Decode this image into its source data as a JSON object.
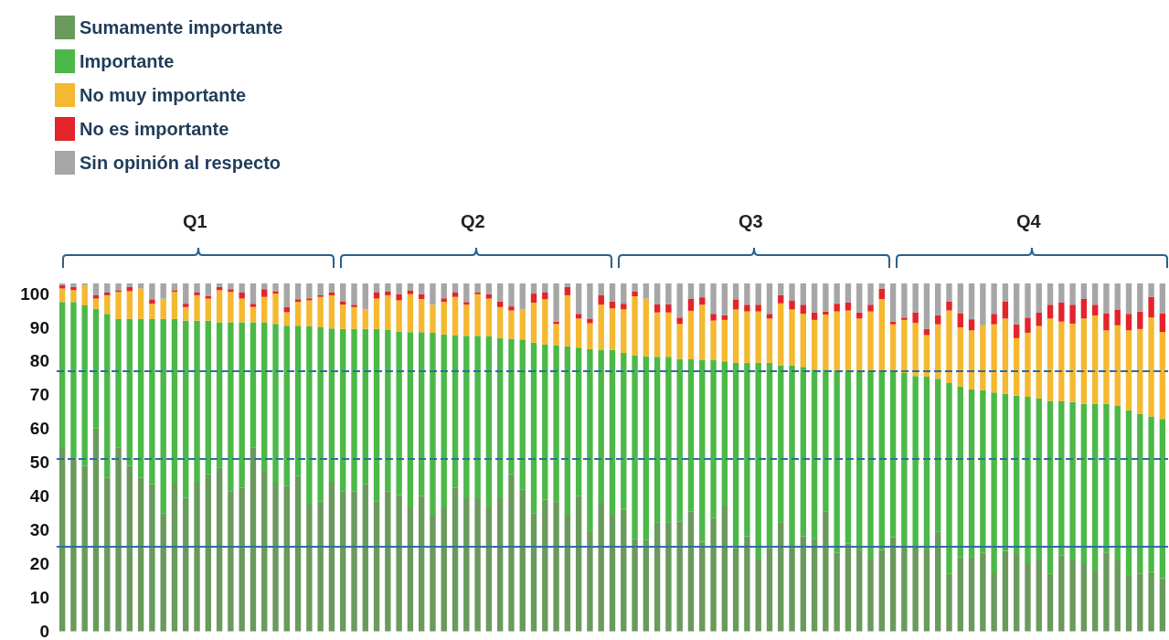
{
  "chart_data": {
    "type": "bar",
    "stacked": true,
    "legend": "top left",
    "grid": false,
    "categories": [
      null,
      null,
      null,
      null,
      null,
      null,
      null,
      null,
      null,
      null,
      null,
      null,
      null,
      null,
      null,
      null,
      null,
      null,
      null,
      null,
      null,
      null,
      null,
      null,
      null,
      null,
      null,
      null,
      null,
      null,
      null,
      null,
      null,
      null,
      null,
      null,
      null,
      null,
      null,
      null,
      null,
      null,
      null,
      null,
      null,
      null,
      null,
      null,
      null,
      null,
      null,
      null,
      null,
      null,
      null,
      null,
      null,
      null,
      null,
      null,
      null,
      null,
      null,
      null,
      null,
      null,
      null,
      null,
      null,
      null,
      null,
      null,
      null,
      null,
      null,
      null,
      null,
      null,
      null,
      null,
      null,
      null,
      null,
      null,
      null,
      null,
      null,
      null,
      null,
      null,
      null,
      null,
      null,
      null,
      null,
      null,
      null,
      null,
      null
    ],
    "ylim": [
      0,
      103
    ],
    "yticks": [
      0,
      10,
      20,
      30,
      40,
      50,
      60,
      70,
      80,
      90,
      100
    ],
    "annotations": [
      "Q1",
      "Q2",
      "Q3",
      "Q4"
    ],
    "ref_lines": [
      {
        "axis": "y",
        "value": 77,
        "color": "#2e6da4",
        "line_style": "dashed"
      },
      {
        "axis": "y",
        "value": 51,
        "color": "#2e6da4",
        "line_style": "dashed"
      },
      {
        "axis": "y",
        "value": 25,
        "color": "#2e6da4",
        "line_style": "solid"
      }
    ],
    "series": [
      {
        "name": "Sumamente importante",
        "color": "#6a9a5c",
        "values": [
          54,
          51,
          49,
          60,
          45.5,
          54.5,
          49,
          45.5,
          43.5,
          35,
          44,
          39.5,
          44,
          46.5,
          48.5,
          41.5,
          42.5,
          54.5,
          47.5,
          44,
          43,
          46,
          37.5,
          38.5,
          44,
          41.5,
          41.5,
          43.5,
          38.5,
          41.5,
          40.3,
          36.7,
          40,
          34.5,
          36.7,
          42.5,
          39.4,
          39.4,
          36.7,
          39.4,
          46.5,
          42,
          35,
          39,
          38.5,
          34.5,
          40,
          29.6,
          38,
          34.5,
          36.3,
          27.3,
          27,
          32.3,
          32.3,
          32.5,
          35.4,
          26.5,
          33.6,
          37.2,
          24.7,
          28.2,
          21.5,
          24.7,
          32.3,
          25.6,
          28.2,
          27.3,
          35.4,
          23.3,
          26,
          24.2,
          21.5,
          24,
          27.8,
          25,
          25,
          24.2,
          29.6,
          17,
          22,
          22,
          23.3,
          17.2,
          23.8,
          22.9,
          20.2,
          21.5,
          17,
          22.4,
          21,
          20.2,
          18,
          23.3,
          21,
          16.6,
          17,
          17.5,
          15.7
        ]
      },
      {
        "name": "Importante",
        "color": "#4cb848",
        "values": [
          43.5,
          46.5,
          47.5,
          35.5,
          48.5,
          38,
          43.5,
          47,
          49,
          57.5,
          48.5,
          52.5,
          48,
          45.5,
          43,
          50,
          49,
          37,
          44,
          47,
          47.5,
          44.5,
          52.9,
          51.5,
          45.7,
          48,
          48,
          46,
          51,
          47.8,
          48.5,
          51.9,
          48.6,
          53.9,
          51.2,
          45.2,
          48.1,
          48.1,
          50.6,
          47.4,
          40.1,
          44.4,
          50.5,
          45.9,
          46.1,
          49.8,
          44,
          53.9,
          45.4,
          48.9,
          46.1,
          54.3,
          54.5,
          49,
          49,
          48.2,
          45.1,
          53.9,
          46.8,
          42.7,
          54.8,
          51.3,
          58,
          54.8,
          46.5,
          53.2,
          50.1,
          50.2,
          42.1,
          53.9,
          51.2,
          53,
          55.5,
          53,
          49.2,
          51.5,
          50.6,
          51.2,
          45.2,
          56.6,
          50.5,
          49.6,
          48.1,
          53.5,
          46.5,
          46.9,
          49.2,
          47.5,
          51.2,
          45.7,
          46.9,
          47.1,
          49.3,
          44,
          45.7,
          48.8,
          47.3,
          46.1,
          47.2
        ]
      },
      {
        "name": "No muy importante",
        "color": "#f4b930",
        "values": [
          4,
          3.5,
          6,
          3,
          5.5,
          8,
          8.2,
          9,
          4.5,
          6,
          8,
          4,
          7.5,
          6.5,
          9.5,
          9,
          7,
          4.5,
          7.5,
          9,
          4,
          7,
          7.6,
          9,
          9.8,
          7.2,
          6.5,
          5.8,
          9,
          10.2,
          9.2,
          11.2,
          9.8,
          8.3,
          9.6,
          11.3,
          9.2,
          12.3,
          11.2,
          9.2,
          8.4,
          8.9,
          11.8,
          13.4,
          6.4,
          15.2,
          8.6,
          7.7,
          13.3,
          12.2,
          12.9,
          17.6,
          17,
          13.1,
          13.1,
          10.3,
          14.4,
          16.3,
          11.6,
          12.3,
          15.8,
          15.2,
          15.2,
          13.1,
          18.3,
          16.5,
          15.7,
          14.7,
          16.3,
          17.5,
          17.8,
          15.4,
          17.7,
          21.4,
          13.9,
          15.7,
          15.7,
          12.3,
          16.1,
          21.4,
          17.5,
          17.5,
          19.2,
          20.2,
          22.3,
          17,
          19,
          21.4,
          24.4,
          23.6,
          23.2,
          25.3,
          26.2,
          21.8,
          23.9,
          23.7,
          25.2,
          29.3,
          25.7
        ]
      },
      {
        "name": "No es importante",
        "color": "#e3242b",
        "values": [
          1,
          1,
          0,
          1,
          0.8,
          0.5,
          1.3,
          0,
          1.3,
          0,
          0.5,
          1,
          0.8,
          0.8,
          1,
          0.8,
          1.8,
          1,
          2.3,
          0.7,
          1.5,
          0.8,
          0.6,
          0.5,
          0.8,
          0.9,
          0.7,
          0,
          1.8,
          1.2,
          1.8,
          1.2,
          1.4,
          0,
          1.1,
          1.3,
          0.8,
          0.5,
          1.3,
          1.6,
          1.2,
          0,
          2.7,
          2,
          0.7,
          2.5,
          1.4,
          1.4,
          2.8,
          2,
          1.7,
          1.5,
          0,
          2.4,
          2.4,
          1.9,
          3.5,
          2.2,
          2,
          1.4,
          3,
          2,
          2,
          1.4,
          2.4,
          2.7,
          2.7,
          2.2,
          0.9,
          2.3,
          2.4,
          1.8,
          2,
          3.1,
          0.8,
          0.7,
          3.1,
          1.8,
          2.7,
          2.6,
          4.2,
          3.3,
          0,
          3.1,
          5,
          4.1,
          4.5,
          4,
          4.1,
          5.7,
          5.6,
          5.8,
          3.2,
          5.1,
          4.7,
          4.9,
          5.2,
          6.1,
          5.6
        ]
      },
      {
        "name": "Sin opinión al respecto",
        "color": "#a6a6a6",
        "values": [
          0.5,
          1,
          0.5,
          3.5,
          2.7,
          2,
          1,
          1.5,
          4.7,
          4.5,
          2,
          6,
          2.7,
          3.7,
          1,
          1.7,
          2.7,
          6,
          1.7,
          2.3,
          7,
          4.7,
          4.4,
          3.5,
          2.7,
          5.4,
          6.3,
          7.7,
          2.7,
          2.3,
          3.2,
          2,
          3.2,
          6.3,
          4.4,
          2.7,
          5.5,
          2.7,
          3.2,
          5.4,
          6.8,
          7.7,
          3,
          2.7,
          11.3,
          1,
          9,
          10.4,
          3.5,
          5.4,
          6,
          2.3,
          4.5,
          6.2,
          6.2,
          10.1,
          4.6,
          4.1,
          9,
          9.4,
          4.7,
          6.3,
          6.3,
          9,
          3.5,
          5,
          6.3,
          8.6,
          8.3,
          6,
          5.6,
          8.6,
          6.3,
          1.5,
          11.3,
          10.1,
          8.6,
          13.5,
          9.4,
          5.4,
          8.8,
          10.6,
          12.4,
          9,
          5.4,
          12.1,
          10.1,
          8.6,
          6.3,
          5.6,
          6.3,
          4.6,
          6.3,
          8.8,
          7.7,
          9,
          8.3,
          4,
          8.8
        ]
      }
    ]
  }
}
